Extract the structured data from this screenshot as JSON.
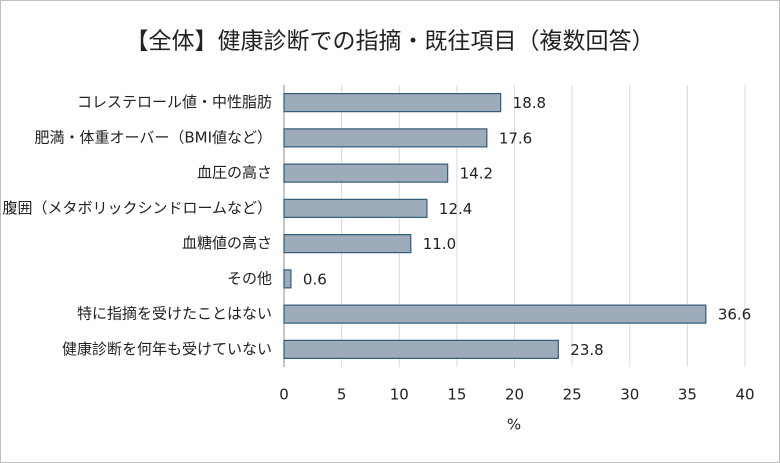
{
  "chart_data": {
    "type": "barh",
    "title": "【全体】健康診断での指摘・既往項目（複数回答）",
    "xlabel": "%",
    "categories": [
      "コレステロール値・中性脂肪",
      "肥満・体重オーバー（BMI値など）",
      "血圧の高さ",
      "腹囲（メタボリックシンドロームなど）",
      "血糖値の高さ",
      "その他",
      "特に指摘を受けたことはない",
      "健康診断を何年も受けていない"
    ],
    "values": [
      18.8,
      17.6,
      14.2,
      12.4,
      11.0,
      0.6,
      36.6,
      23.8
    ],
    "value_labels": [
      "18.8",
      "17.6",
      "14.2",
      "12.4",
      "11.0",
      "0.6",
      "36.6",
      "23.8"
    ],
    "color": "#9eabbb",
    "edgecolor": "#2f5d78",
    "xlim": [
      0,
      40
    ],
    "xticks": [
      0,
      5,
      10,
      15,
      20,
      25,
      30,
      35,
      40
    ],
    "grid": true
  }
}
